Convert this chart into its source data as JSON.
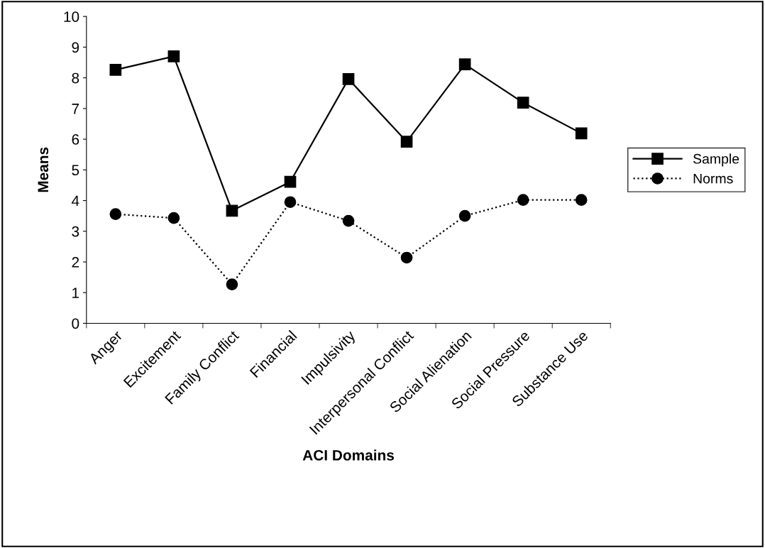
{
  "chart_data": {
    "type": "line",
    "xlabel": "ACI Domains",
    "ylabel": "Means",
    "categories": [
      "Anger",
      "Excitement",
      "Family Conflict",
      "Financial",
      "Impulsivity",
      "Interpersonal Conflict",
      "Social Alienation",
      "Social Pressure",
      "Substance Use"
    ],
    "series": [
      {
        "name": "Sample",
        "color": "#000000",
        "marker": "square",
        "line_style": "solid",
        "values": [
          8.26,
          8.7,
          3.67,
          4.61,
          7.96,
          5.92,
          8.44,
          7.19,
          6.19
        ]
      },
      {
        "name": "Norms",
        "color": "#000000",
        "marker": "circle",
        "line_style": "dotted",
        "values": [
          3.56,
          3.43,
          1.27,
          3.95,
          3.34,
          2.14,
          3.5,
          4.02,
          4.02
        ]
      }
    ],
    "ylim": [
      0,
      10
    ],
    "yticks": [
      0,
      1,
      2,
      3,
      4,
      5,
      6,
      7,
      8,
      9,
      10
    ],
    "grid": false,
    "legend": "right"
  }
}
